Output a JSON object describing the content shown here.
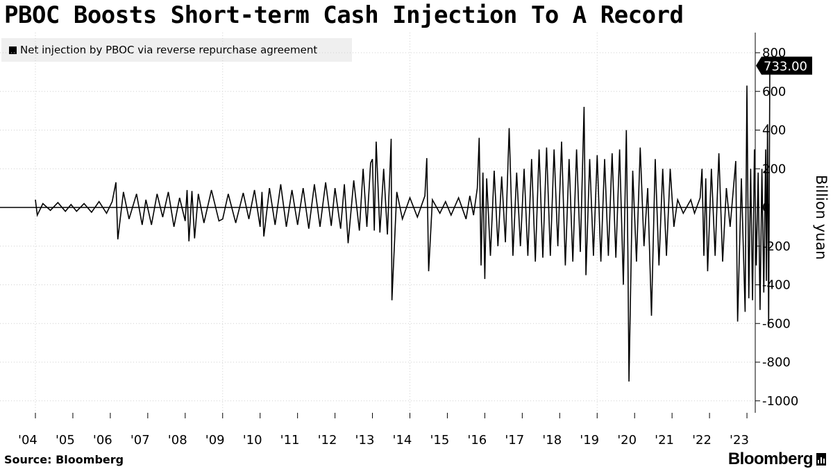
{
  "header": {
    "title": "PBOC Boosts Short-term Cash Injection To A Record"
  },
  "legend": {
    "label": "Net injection by PBOC via reverse repurchase agreement"
  },
  "footer": {
    "source": "Source: Bloomberg",
    "brand": "Bloomberg"
  },
  "colors": {
    "line": "#000000",
    "legend_bg": "#efefef",
    "grid": "#cccccc",
    "background": "#ffffff"
  },
  "chart_data": {
    "type": "line",
    "title": "PBOC Boosts Short-term Cash Injection To A Record",
    "xlabel": "",
    "ylabel": "Billion yuan",
    "ylim": [
      -1050,
      900
    ],
    "xlim": [
      2003.9,
      2023.65
    ],
    "yticks": [
      800,
      600,
      400,
      200,
      0,
      -200,
      -400,
      -600,
      -800,
      -1000
    ],
    "ytick_labels": [
      "800",
      "600",
      "400",
      "200",
      "0",
      "-200",
      "-400",
      "-600",
      "-800",
      "-1000"
    ],
    "xticks": [
      2004,
      2005,
      2006,
      2007,
      2008,
      2009,
      2010,
      2011,
      2012,
      2013,
      2014,
      2015,
      2016,
      2017,
      2018,
      2019,
      2020,
      2021,
      2022,
      2023
    ],
    "xtick_labels": [
      "'04",
      "'05",
      "'06",
      "'07",
      "'08",
      "'09",
      "'10",
      "'11",
      "'12",
      "'13",
      "'14",
      "'15",
      "'16",
      "'17",
      "'18",
      "'19",
      "'20",
      "'21",
      "'22",
      "'23"
    ],
    "vertical_gridlines_at": [
      2004,
      2009,
      2014,
      2019
    ],
    "horizontal_gridlines": true,
    "legend_position": "top-left",
    "last_value_label": "733.00",
    "last_value": 733,
    "series": [
      {
        "name": "Net injection by PBOC via reverse repurchase agreement",
        "approximate": true,
        "points": [
          [
            2004.0,
            40
          ],
          [
            2004.05,
            -40
          ],
          [
            2004.2,
            20
          ],
          [
            2004.4,
            -15
          ],
          [
            2004.6,
            25
          ],
          [
            2004.8,
            -20
          ],
          [
            2004.95,
            15
          ],
          [
            2005.1,
            -20
          ],
          [
            2005.3,
            20
          ],
          [
            2005.5,
            -25
          ],
          [
            2005.7,
            30
          ],
          [
            2005.9,
            -30
          ],
          [
            2006.05,
            30
          ],
          [
            2006.15,
            130
          ],
          [
            2006.2,
            -165
          ],
          [
            2006.35,
            80
          ],
          [
            2006.5,
            -60
          ],
          [
            2006.7,
            70
          ],
          [
            2006.85,
            -90
          ],
          [
            2006.95,
            40
          ],
          [
            2007.1,
            -90
          ],
          [
            2007.25,
            70
          ],
          [
            2007.4,
            -50
          ],
          [
            2007.55,
            80
          ],
          [
            2007.7,
            -100
          ],
          [
            2007.85,
            50
          ],
          [
            2008.0,
            -70
          ],
          [
            2008.05,
            90
          ],
          [
            2008.1,
            -175
          ],
          [
            2008.18,
            85
          ],
          [
            2008.25,
            -160
          ],
          [
            2008.35,
            70
          ],
          [
            2008.5,
            -80
          ],
          [
            2008.7,
            90
          ],
          [
            2008.9,
            -70
          ],
          [
            2009.0,
            -60
          ],
          [
            2009.15,
            70
          ],
          [
            2009.35,
            -80
          ],
          [
            2009.55,
            75
          ],
          [
            2009.7,
            -60
          ],
          [
            2009.85,
            90
          ],
          [
            2010.0,
            -100
          ],
          [
            2010.05,
            80
          ],
          [
            2010.1,
            -150
          ],
          [
            2010.25,
            100
          ],
          [
            2010.4,
            -90
          ],
          [
            2010.55,
            120
          ],
          [
            2010.7,
            -100
          ],
          [
            2010.85,
            90
          ],
          [
            2011.0,
            -90
          ],
          [
            2011.15,
            100
          ],
          [
            2011.3,
            -110
          ],
          [
            2011.45,
            120
          ],
          [
            2011.6,
            -100
          ],
          [
            2011.75,
            130
          ],
          [
            2011.9,
            -95
          ],
          [
            2012.0,
            100
          ],
          [
            2012.15,
            -110
          ],
          [
            2012.25,
            120
          ],
          [
            2012.35,
            -185
          ],
          [
            2012.5,
            140
          ],
          [
            2012.65,
            -120
          ],
          [
            2012.75,
            200
          ],
          [
            2012.85,
            -100
          ],
          [
            2012.95,
            230
          ],
          [
            2013.0,
            250
          ],
          [
            2013.05,
            -120
          ],
          [
            2013.1,
            340
          ],
          [
            2013.2,
            -130
          ],
          [
            2013.3,
            200
          ],
          [
            2013.4,
            -140
          ],
          [
            2013.5,
            355
          ],
          [
            2013.52,
            -480
          ],
          [
            2013.65,
            80
          ],
          [
            2013.8,
            -60
          ],
          [
            2014.0,
            50
          ],
          [
            2014.2,
            -50
          ],
          [
            2014.4,
            60
          ],
          [
            2014.45,
            255
          ],
          [
            2014.5,
            -330
          ],
          [
            2014.6,
            40
          ],
          [
            2014.8,
            -30
          ],
          [
            2014.95,
            30
          ],
          [
            2015.1,
            -40
          ],
          [
            2015.3,
            50
          ],
          [
            2015.5,
            -60
          ],
          [
            2015.6,
            60
          ],
          [
            2015.7,
            -40
          ],
          [
            2015.8,
            100
          ],
          [
            2015.85,
            360
          ],
          [
            2015.9,
            -300
          ],
          [
            2015.95,
            180
          ],
          [
            2016.0,
            -370
          ],
          [
            2016.05,
            150
          ],
          [
            2016.15,
            -250
          ],
          [
            2016.25,
            190
          ],
          [
            2016.35,
            -200
          ],
          [
            2016.45,
            160
          ],
          [
            2016.55,
            -180
          ],
          [
            2016.65,
            410
          ],
          [
            2016.75,
            -250
          ],
          [
            2016.85,
            180
          ],
          [
            2016.95,
            -200
          ],
          [
            2017.05,
            200
          ],
          [
            2017.15,
            -250
          ],
          [
            2017.25,
            250
          ],
          [
            2017.35,
            -280
          ],
          [
            2017.45,
            300
          ],
          [
            2017.55,
            -260
          ],
          [
            2017.65,
            310
          ],
          [
            2017.75,
            -250
          ],
          [
            2017.85,
            300
          ],
          [
            2017.95,
            -200
          ],
          [
            2018.05,
            340
          ],
          [
            2018.15,
            -300
          ],
          [
            2018.25,
            250
          ],
          [
            2018.35,
            -280
          ],
          [
            2018.45,
            300
          ],
          [
            2018.55,
            -230
          ],
          [
            2018.65,
            520
          ],
          [
            2018.7,
            -350
          ],
          [
            2018.8,
            250
          ],
          [
            2018.9,
            -250
          ],
          [
            2019.0,
            270
          ],
          [
            2019.1,
            -280
          ],
          [
            2019.2,
            250
          ],
          [
            2019.3,
            -250
          ],
          [
            2019.4,
            280
          ],
          [
            2019.5,
            -260
          ],
          [
            2019.6,
            300
          ],
          [
            2019.7,
            -400
          ],
          [
            2019.78,
            400
          ],
          [
            2019.82,
            -230
          ],
          [
            2019.85,
            -900
          ],
          [
            2019.95,
            190
          ],
          [
            2020.05,
            -280
          ],
          [
            2020.15,
            310
          ],
          [
            2020.25,
            -200
          ],
          [
            2020.35,
            100
          ],
          [
            2020.45,
            -560
          ],
          [
            2020.55,
            250
          ],
          [
            2020.65,
            -300
          ],
          [
            2020.75,
            200
          ],
          [
            2020.85,
            -250
          ],
          [
            2020.95,
            200
          ],
          [
            2021.05,
            -100
          ],
          [
            2021.15,
            40
          ],
          [
            2021.3,
            -30
          ],
          [
            2021.5,
            40
          ],
          [
            2021.6,
            -30
          ],
          [
            2021.75,
            50
          ],
          [
            2021.8,
            200
          ],
          [
            2021.85,
            -250
          ],
          [
            2021.9,
            150
          ],
          [
            2021.95,
            -330
          ],
          [
            2022.05,
            200
          ],
          [
            2022.15,
            -250
          ],
          [
            2022.25,
            280
          ],
          [
            2022.35,
            -280
          ],
          [
            2022.45,
            100
          ],
          [
            2022.55,
            -100
          ],
          [
            2022.7,
            240
          ],
          [
            2022.75,
            -590
          ],
          [
            2022.85,
            150
          ],
          [
            2022.95,
            -540
          ],
          [
            2023.0,
            630
          ],
          [
            2023.05,
            -470
          ],
          [
            2023.1,
            200
          ],
          [
            2023.15,
            -480
          ],
          [
            2023.2,
            300
          ],
          [
            2023.25,
            -300
          ],
          [
            2023.3,
            180
          ],
          [
            2023.35,
            -530
          ],
          [
            2023.4,
            200
          ],
          [
            2023.45,
            -440
          ],
          [
            2023.5,
            300
          ],
          [
            2023.52,
            -380
          ],
          [
            2023.55,
            430
          ],
          [
            2023.58,
            -620
          ],
          [
            2023.61,
            733
          ]
        ]
      }
    ]
  }
}
